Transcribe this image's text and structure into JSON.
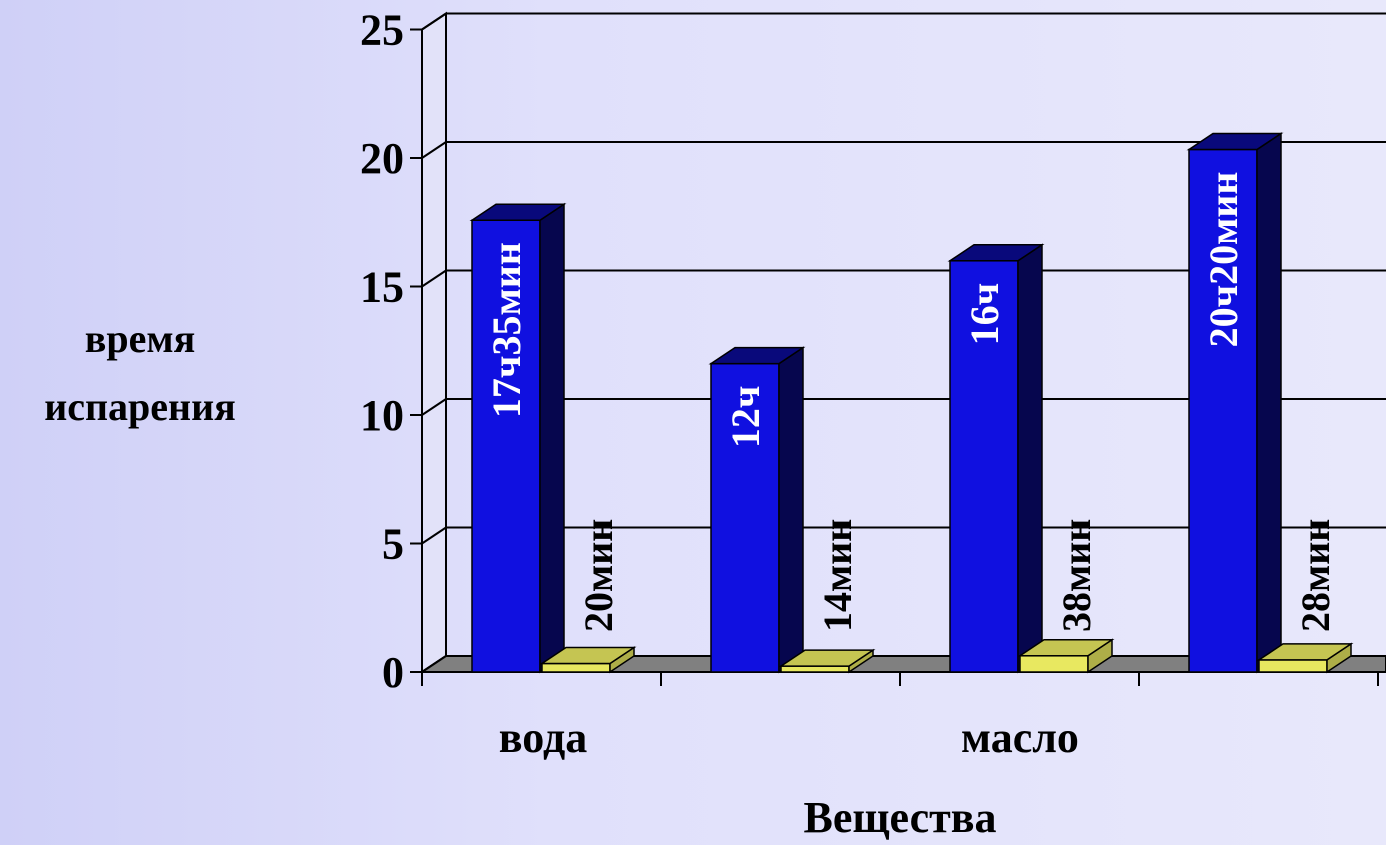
{
  "chart_data": {
    "type": "bar",
    "style": "3d-clustered-column",
    "xlabel": "Вещества",
    "ylabel_lines": [
      "время",
      "испарения"
    ],
    "ylim": [
      0,
      25
    ],
    "yticks": [
      "0",
      "5",
      "10",
      "15",
      "20",
      "25"
    ],
    "grid": true,
    "category_labels": [
      "вода",
      "",
      "масло",
      ""
    ],
    "series": [
      {
        "color": "#1010e0",
        "values": [
          17.58,
          12,
          16,
          20.33
        ],
        "data_labels": [
          "17ч35мин",
          "12ч",
          "16ч",
          "20ч20мин"
        ]
      },
      {
        "color": "#e8e860",
        "values": [
          0.33,
          0.23,
          0.63,
          0.47
        ],
        "data_labels": [
          "20мин",
          "14мин",
          "38мин",
          "28мин"
        ]
      }
    ]
  }
}
